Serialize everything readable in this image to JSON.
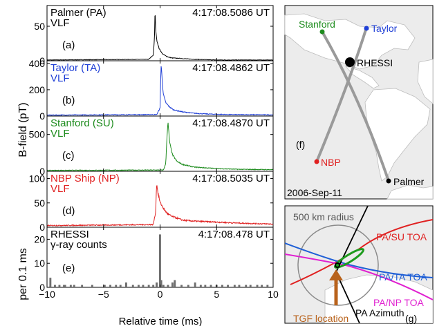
{
  "figure": {
    "y_label_top": "B-field (pT)",
    "y_label_bottom": "per 0.1 ms",
    "x_label": "Relative time (ms)"
  },
  "chart_data": [
    {
      "type": "line",
      "panel": "a",
      "label": "(a)",
      "station": "Palmer (PA)",
      "kind": "VLF",
      "time": "4:17:08.5086 UT",
      "color": "#000000",
      "ylim": [
        0,
        80
      ],
      "yticks": [
        0,
        50
      ],
      "xlim": [
        -10,
        10
      ],
      "baseline": 1.5,
      "noise": 1.0,
      "series": [
        {
          "x": [
            -10,
            -1.0,
            -0.6,
            -0.5,
            -0.45,
            -0.4,
            -0.3,
            -0.1,
            0.2,
            0.6,
            1.0,
            2.0,
            3.0,
            4.0,
            5.0,
            10
          ],
          "y": [
            1,
            2,
            8,
            30,
            75,
            48,
            30,
            18,
            10,
            6,
            4,
            3,
            2,
            1.5,
            1,
            1
          ]
        }
      ]
    },
    {
      "type": "line",
      "panel": "b",
      "label": "(b)",
      "station": "Taylor (TA)",
      "kind": "VLF",
      "time": "4:17:08.4862 UT",
      "color": "#1f3fd6",
      "ylim": [
        0,
        420
      ],
      "yticks": [
        0,
        200,
        400
      ],
      "xlim": [
        -10,
        10
      ],
      "baseline": 8,
      "noise": 8,
      "series": [
        {
          "x": [
            -10,
            -0.3,
            0,
            0.05,
            0.1,
            0.2,
            0.3,
            0.5,
            0.8,
            1.2,
            2.0,
            3.0,
            4.0,
            6.0,
            10
          ],
          "y": [
            6,
            10,
            60,
            280,
            390,
            250,
            160,
            100,
            70,
            45,
            30,
            20,
            15,
            10,
            8
          ]
        }
      ]
    },
    {
      "type": "line",
      "panel": "c",
      "label": "(c)",
      "station": "Stanford (SU)",
      "kind": "VLF",
      "time": "4:17:08.4870 UT",
      "color": "#1e8c1e",
      "ylim": [
        0,
        750
      ],
      "yticks": [
        0,
        500
      ],
      "xlim": [
        -10,
        10
      ],
      "baseline": 12,
      "noise": 14,
      "series": [
        {
          "x": [
            -10,
            0.3,
            0.5,
            0.6,
            0.7,
            0.85,
            1.1,
            1.5,
            2.0,
            3.0,
            5.0,
            7.0,
            10
          ],
          "y": [
            10,
            15,
            100,
            450,
            650,
            380,
            220,
            130,
            90,
            55,
            35,
            25,
            20
          ]
        }
      ]
    },
    {
      "type": "line",
      "panel": "d",
      "label": "(d)",
      "station": "NBP Ship (NP)",
      "kind": "VLF",
      "time": "4:17:08.5035 UT",
      "color": "#e02020",
      "ylim": [
        0,
        115
      ],
      "yticks": [
        0,
        50,
        100
      ],
      "xlim": [
        -10,
        10
      ],
      "baseline": 4,
      "noise": 3,
      "series": [
        {
          "x": [
            -10,
            -0.6,
            -0.4,
            -0.3,
            -0.2,
            0,
            0.3,
            0.6,
            1.0,
            1.5,
            2.0,
            3.0,
            5.0,
            7.0,
            10
          ],
          "y": [
            3,
            5,
            30,
            90,
            70,
            50,
            38,
            28,
            22,
            18,
            14,
            12,
            10,
            8,
            6
          ]
        }
      ]
    },
    {
      "type": "bar",
      "panel": "e",
      "label": "(e)",
      "station": "RHESSI",
      "kind": "γ-ray counts",
      "time": "4:17:08.478 UT",
      "color": "#6e6e6e",
      "ylim": [
        0,
        25
      ],
      "yticks": [
        0,
        10,
        20
      ],
      "xlim": [
        -10,
        10
      ],
      "bin_width": 0.1,
      "x": [
        -9.7,
        -9.3,
        -8.9,
        -8.5,
        -8.4,
        -7.9,
        -7.6,
        -6.9,
        -6.0,
        -4.9,
        -4.4,
        -3.9,
        -3.5,
        -3.0,
        -2.4,
        -1.9,
        -1.5,
        -1.0,
        -0.6,
        -0.3,
        0.0,
        0.1,
        0.3,
        0.7,
        1.1,
        1.3,
        1.9,
        2.5,
        3.1,
        3.6,
        4.0,
        4.5,
        5.0,
        5.5,
        6.0,
        6.6,
        7.0,
        7.6,
        8.0,
        8.6,
        9.0,
        9.5
      ],
      "values": [
        4,
        1,
        1,
        1,
        1,
        1,
        1,
        1,
        1,
        1,
        1,
        1,
        1,
        2,
        1,
        1,
        1,
        1,
        1,
        2,
        22,
        3,
        1,
        1,
        2,
        3,
        1,
        1,
        2,
        1,
        1,
        1,
        1,
        1,
        1,
        1,
        1,
        1,
        1,
        1,
        1,
        1
      ]
    }
  ],
  "map_f": {
    "label": "(f)",
    "date": "2006-Sep-11",
    "sites": [
      {
        "name": "Stanford",
        "color": "#1e8c1e"
      },
      {
        "name": "Taylor",
        "color": "#1f3fd6"
      },
      {
        "name": "RHESSI",
        "color": "#000000"
      },
      {
        "name": "NBP",
        "color": "#e02020"
      },
      {
        "name": "Palmer",
        "color": "#000000"
      }
    ]
  },
  "map_g": {
    "label": "(g)",
    "radius_label": "500 km radius",
    "lines": [
      {
        "name": "PA/SU TOA",
        "color": "#e02020"
      },
      {
        "name": "PA/TA TOA",
        "color": "#1f5fd6"
      },
      {
        "name": "PA/NP TOA",
        "color": "#e020d0"
      },
      {
        "name": "PA Azimuth",
        "color": "#000000"
      }
    ],
    "tgf_label": "TGF location",
    "arrow_color": "#b8621b"
  }
}
